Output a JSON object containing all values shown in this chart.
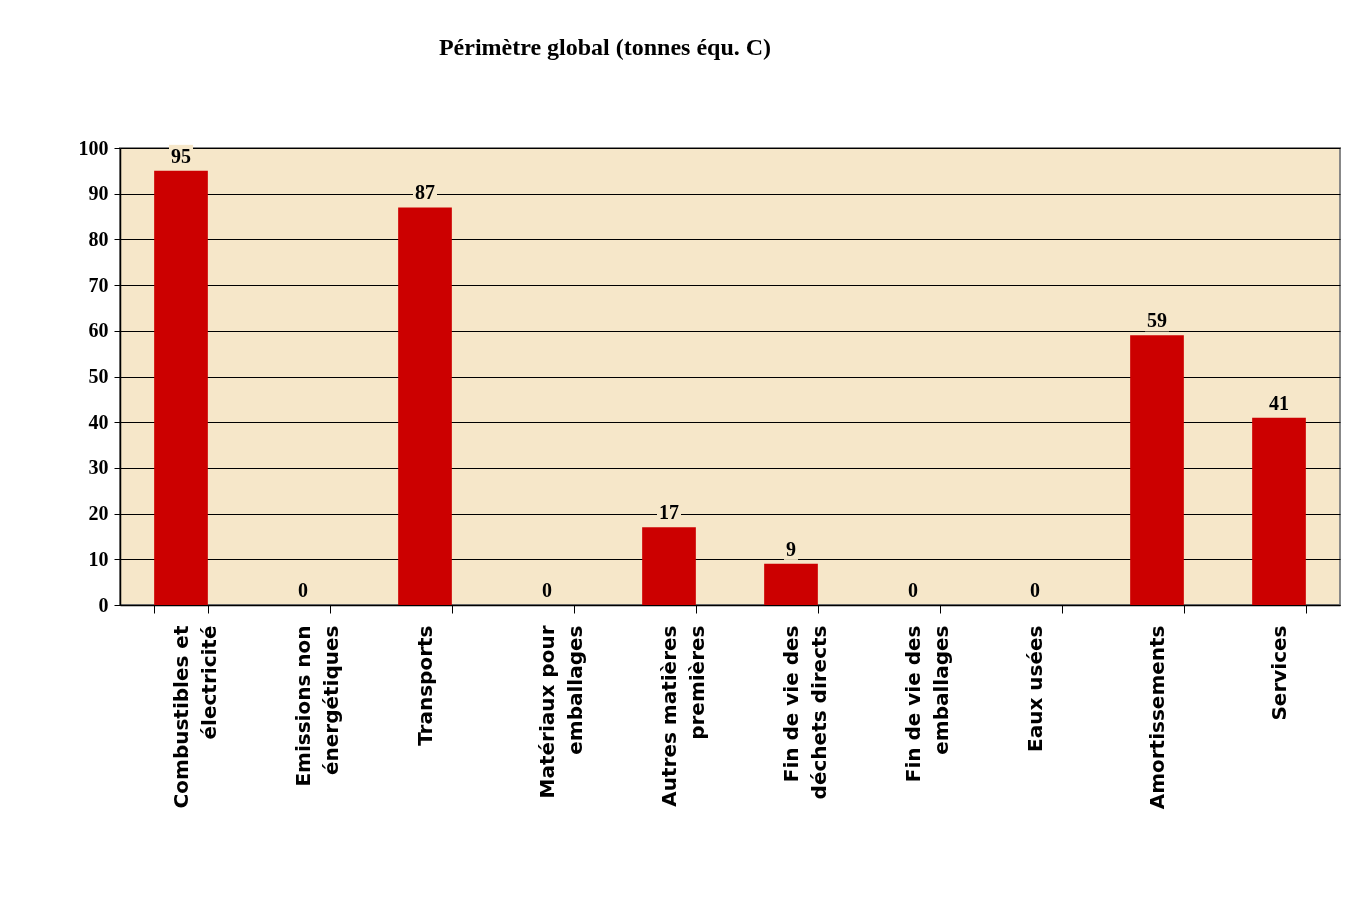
{
  "chart_data": {
    "type": "bar",
    "title": "Périmètre global (tonnes équ. C)",
    "categories": [
      "Combustibles et électricité",
      "Emissions non énergétiques",
      "Transports",
      "Matériaux pour emballages",
      "Autres matières premières",
      "Fin de vie des déchets directs",
      "Fin de vie des emballages",
      "Eaux usées",
      "Amortissements",
      "Services"
    ],
    "values": [
      95,
      0,
      87,
      0,
      17,
      9,
      0,
      0,
      59,
      41
    ],
    "color": "#cc0000",
    "ylim": [
      0,
      100
    ],
    "yticks": [
      0,
      10,
      20,
      30,
      40,
      50,
      60,
      70,
      80,
      90,
      100
    ],
    "grid": "y",
    "data_labels": true
  }
}
